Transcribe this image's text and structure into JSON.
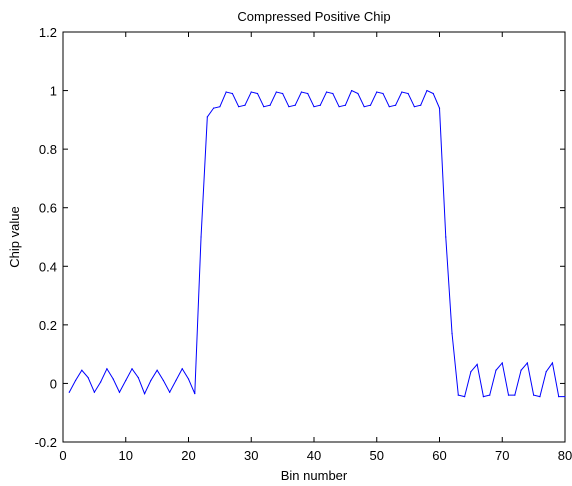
{
  "chart_data": {
    "type": "line",
    "title": "Compressed Positive Chip",
    "xlabel": "Bin number",
    "ylabel": "Chip value",
    "xlim": [
      0,
      80
    ],
    "ylim": [
      -0.2,
      1.2
    ],
    "xticks": [
      "0",
      "10",
      "20",
      "30",
      "40",
      "50",
      "60",
      "70",
      "80"
    ],
    "yticks": [
      "-0.2",
      "0",
      "0.2",
      "0.4",
      "0.6",
      "0.8",
      "1",
      "1.2"
    ],
    "grid": false,
    "series": [
      {
        "color": "#0000ff",
        "x": [
          1,
          2,
          3,
          4,
          5,
          6,
          7,
          8,
          9,
          10,
          11,
          12,
          13,
          14,
          15,
          16,
          17,
          18,
          19,
          20,
          21,
          22,
          23,
          24,
          25,
          26,
          27,
          28,
          29,
          30,
          31,
          32,
          33,
          34,
          35,
          36,
          37,
          38,
          39,
          40,
          41,
          42,
          43,
          44,
          45,
          46,
          47,
          48,
          49,
          50,
          51,
          52,
          53,
          54,
          55,
          56,
          57,
          58,
          59,
          60,
          61,
          62,
          63,
          64,
          65,
          66,
          67,
          68,
          69,
          70,
          71,
          72,
          73,
          74,
          75,
          76,
          77,
          78,
          79,
          80
        ],
        "y": [
          -0.03,
          0.01,
          0.045,
          0.02,
          -0.03,
          0.005,
          0.05,
          0.015,
          -0.03,
          0.01,
          0.05,
          0.02,
          -0.035,
          0.01,
          0.045,
          0.01,
          -0.03,
          0.01,
          0.05,
          0.015,
          -0.035,
          0.5,
          0.91,
          0.94,
          0.945,
          0.995,
          0.99,
          0.945,
          0.95,
          0.995,
          0.99,
          0.945,
          0.95,
          0.995,
          0.99,
          0.945,
          0.95,
          0.995,
          0.99,
          0.945,
          0.95,
          0.995,
          0.99,
          0.945,
          0.95,
          1.0,
          0.99,
          0.945,
          0.95,
          0.995,
          0.99,
          0.945,
          0.95,
          0.995,
          0.99,
          0.945,
          0.95,
          1.0,
          0.99,
          0.94,
          0.5,
          0.17,
          -0.04,
          -0.045,
          0.04,
          0.065,
          -0.045,
          -0.04,
          0.045,
          0.07,
          -0.04,
          -0.04,
          0.045,
          0.07,
          -0.04,
          -0.045,
          0.04,
          0.07,
          -0.045,
          -0.045
        ]
      }
    ]
  }
}
